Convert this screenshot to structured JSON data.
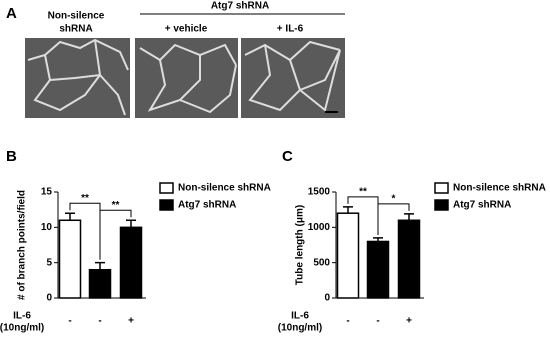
{
  "panel_labels": [
    "A",
    "B",
    "C"
  ],
  "panel_a": {
    "group_label": "Atg7 shRNA",
    "control_label": [
      "Non-silence",
      "shRNA"
    ],
    "condition_labels": [
      "+ vehicle",
      "+ IL-6"
    ]
  },
  "chart_data": [
    {
      "type": "bar",
      "ylabel": "# of branch points/field",
      "categories": [
        "-",
        "-",
        "+"
      ],
      "xlabel": "IL-6",
      "xlabel_unit": "(10ng/ml)",
      "series": [
        {
          "name": "Non-silence shRNA",
          "color": "#ffffff",
          "values": [
            11,
            null,
            null
          ],
          "errors": [
            1,
            null,
            null
          ]
        },
        {
          "name": "Atg7 shRNA",
          "color": "#000000",
          "values": [
            null,
            4,
            10
          ],
          "errors": [
            null,
            1,
            1
          ]
        }
      ],
      "ylim": [
        0,
        15
      ],
      "yticks": [
        0,
        5,
        10,
        15
      ],
      "annotations": [
        "**",
        "**"
      ]
    },
    {
      "type": "bar",
      "ylabel": "Tube length (μm)",
      "categories": [
        "-",
        "-",
        "+"
      ],
      "xlabel": "IL-6",
      "xlabel_unit": "(10ng/ml)",
      "series": [
        {
          "name": "Non-silence shRNA",
          "color": "#ffffff",
          "values": [
            1200,
            null,
            null
          ],
          "errors": [
            90,
            null,
            null
          ]
        },
        {
          "name": "Atg7 shRNA",
          "color": "#000000",
          "values": [
            null,
            800,
            1100
          ],
          "errors": [
            null,
            50,
            90
          ]
        }
      ],
      "ylim": [
        0,
        1500
      ],
      "yticks": [
        0,
        500,
        1000,
        1500
      ],
      "annotations": [
        "**",
        "*"
      ]
    }
  ]
}
